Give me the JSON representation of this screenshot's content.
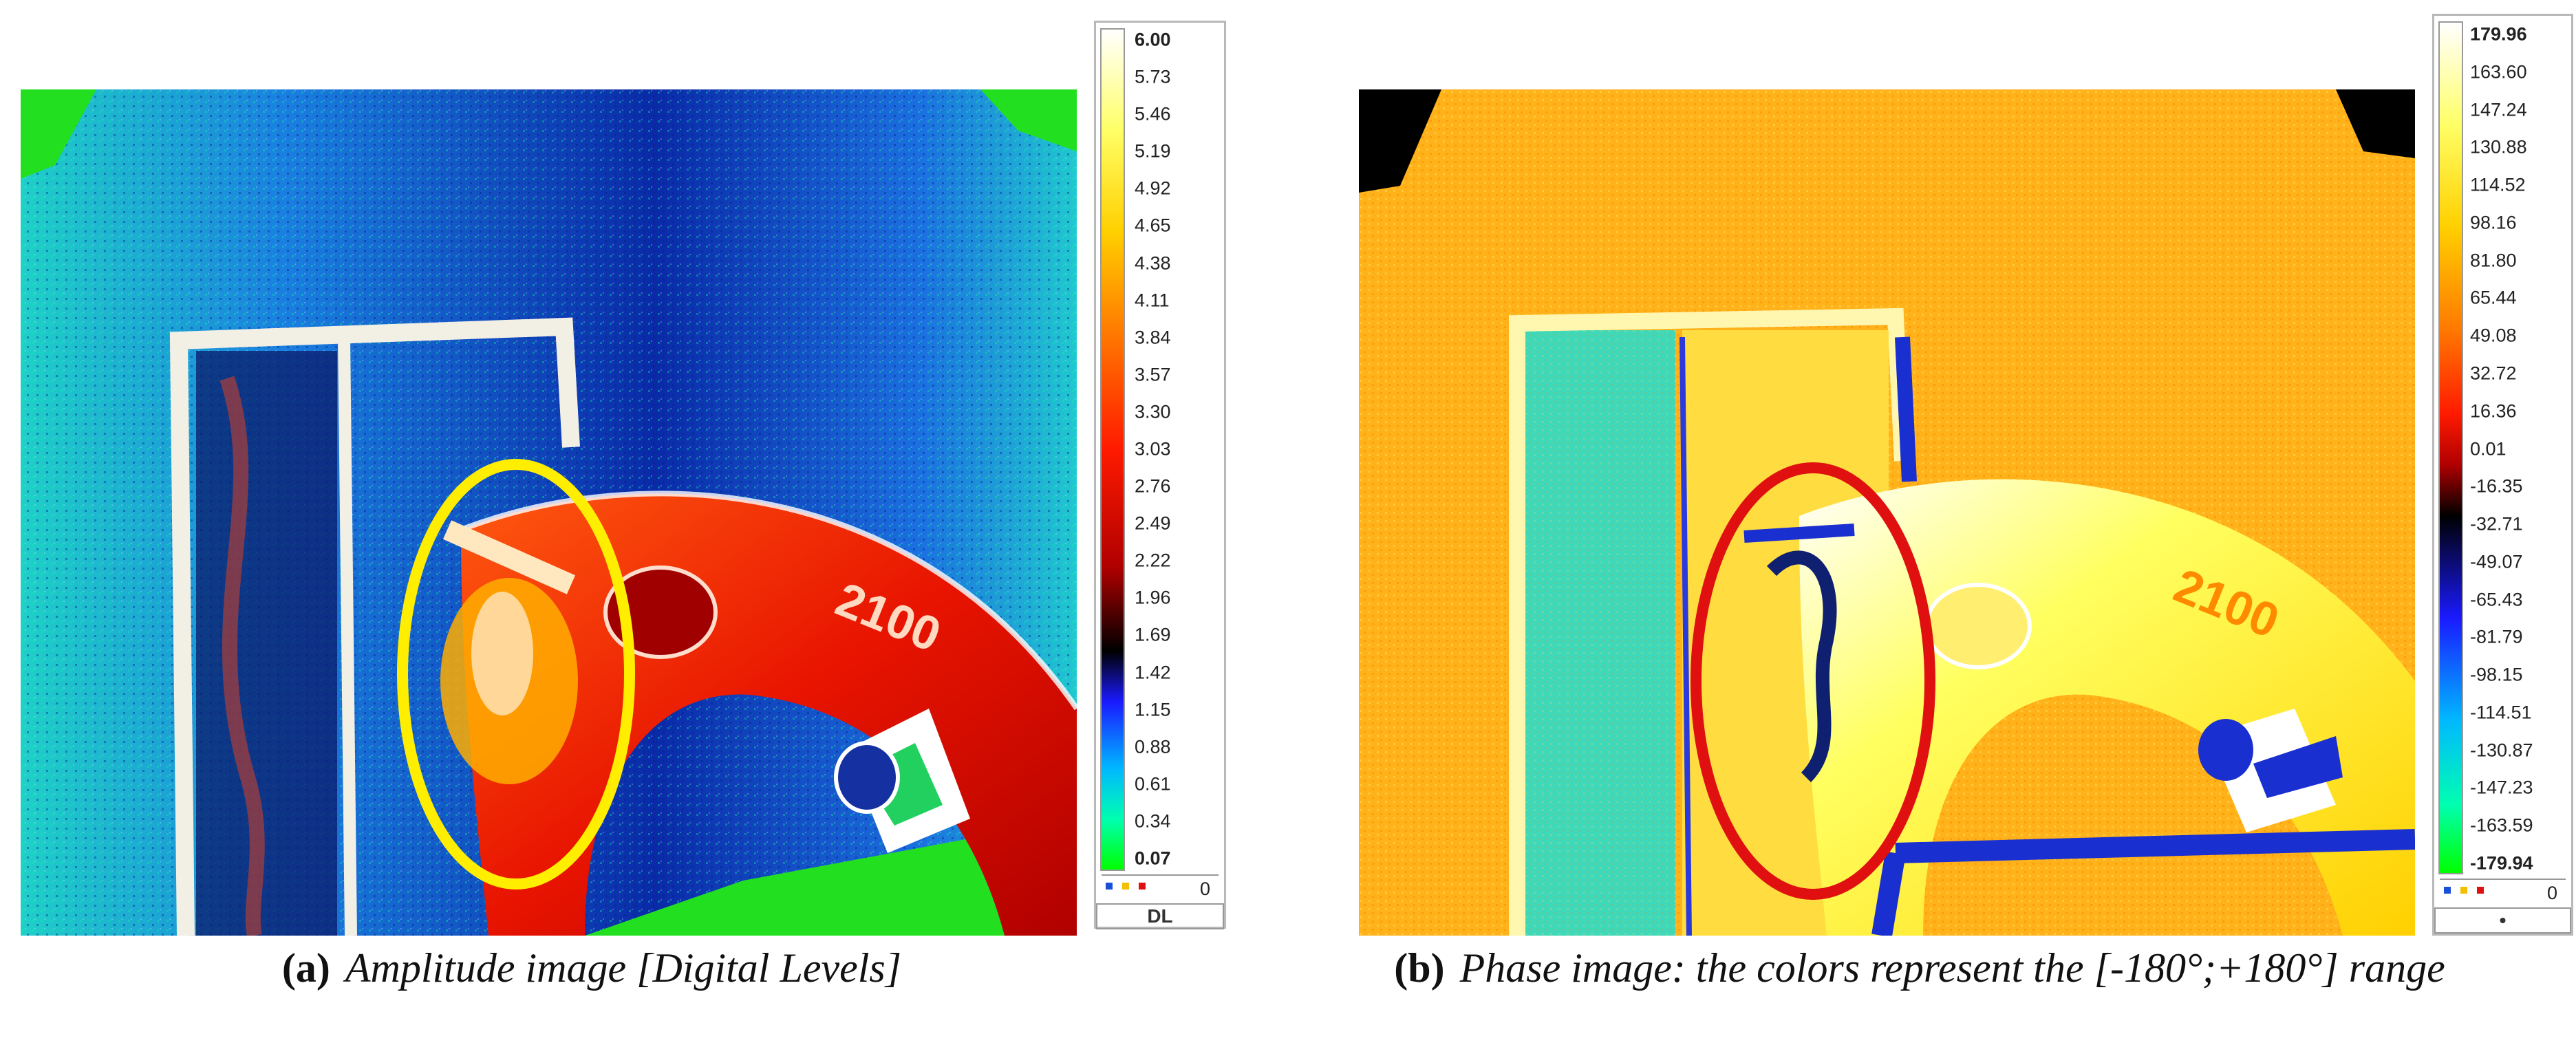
{
  "panels": [
    {
      "letter": "(a)",
      "caption": "Amplitude image [Digital Levels]",
      "colorbar": {
        "ticks": [
          "6.00",
          "5.73",
          "5.46",
          "5.19",
          "4.92",
          "4.65",
          "4.38",
          "4.11",
          "3.84",
          "3.57",
          "3.30",
          "3.03",
          "2.76",
          "2.49",
          "2.22",
          "1.96",
          "1.69",
          "1.42",
          "1.15",
          "0.88",
          "0.61",
          "0.34",
          "0.07"
        ],
        "max_label": "6.00",
        "min_label": "0.07",
        "counter": "0",
        "unit": "DL",
        "colors": [
          "#ffffff",
          "#ffff66",
          "#ffd000",
          "#ff7a00",
          "#ff1a00",
          "#b00000",
          "#000000",
          "#1a1aff",
          "#00b8ff",
          "#00ffb0",
          "#00ff00"
        ]
      },
      "annotation": {
        "shape": "ellipse",
        "color": "#ffee00"
      }
    },
    {
      "letter": "(b)",
      "caption": "Phase image: the colors represent the [-180°;+180°] range",
      "colorbar": {
        "ticks": [
          "179.96",
          "163.60",
          "147.24",
          "130.88",
          "114.52",
          "98.16",
          "81.80",
          "65.44",
          "49.08",
          "32.72",
          "16.36",
          "0.01",
          "-16.35",
          "-32.71",
          "-49.07",
          "-65.43",
          "-81.79",
          "-98.15",
          "-114.51",
          "-130.87",
          "-147.23",
          "-163.59",
          "-179.94"
        ],
        "max_label": "179.96",
        "min_label": "-179.94",
        "counter": "0",
        "unit": "•",
        "colors": [
          "#ffffff",
          "#ffff66",
          "#ffd000",
          "#ff7a00",
          "#ff1a00",
          "#b00000",
          "#000000",
          "#1a1aff",
          "#00b8ff",
          "#00ffb0",
          "#00ff00"
        ]
      },
      "annotation": {
        "shape": "ellipse",
        "color": "#e01010"
      }
    }
  ]
}
